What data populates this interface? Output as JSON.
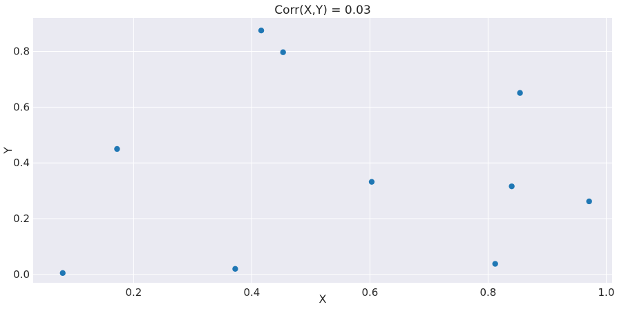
{
  "chart_data": {
    "type": "scatter",
    "title": "Corr(X,Y) = 0.03",
    "xlabel": "X",
    "ylabel": "Y",
    "xlim": [
      0.03,
      1.01
    ],
    "ylim": [
      -0.03,
      0.92
    ],
    "x_ticks": [
      0.2,
      0.4,
      0.6,
      0.8,
      1.0
    ],
    "x_tick_labels": [
      "0.2",
      "0.4",
      "0.6",
      "0.8",
      "1.0"
    ],
    "y_ticks": [
      0.0,
      0.2,
      0.4,
      0.6,
      0.8
    ],
    "y_tick_labels": [
      "0.0",
      "0.2",
      "0.4",
      "0.6",
      "0.8"
    ],
    "grid": true,
    "series": [
      {
        "x": [
          0.08,
          0.172,
          0.372,
          0.416,
          0.453,
          0.603,
          0.812,
          0.84,
          0.854,
          0.971
        ],
        "y": [
          0.005,
          0.45,
          0.02,
          0.875,
          0.797,
          0.332,
          0.038,
          0.316,
          0.651,
          0.262
        ]
      }
    ],
    "colors": {
      "marker": "#1f77b4",
      "background": "#eaeaf2",
      "grid": "#ffffff",
      "text": "#262626"
    }
  }
}
